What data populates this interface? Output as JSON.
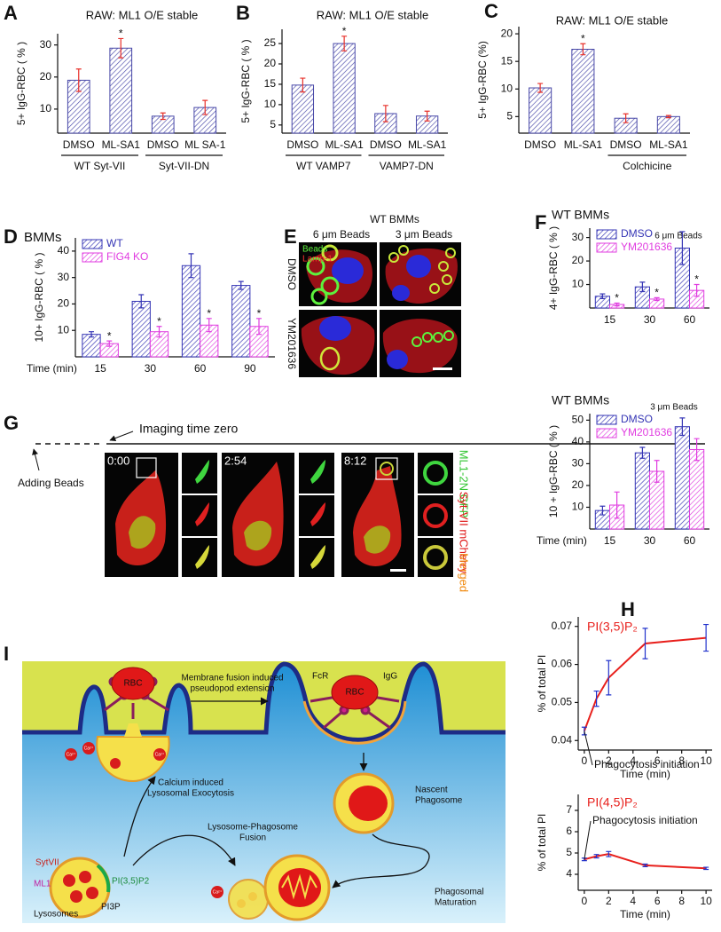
{
  "panel_labels": [
    "A",
    "B",
    "C",
    "D",
    "E",
    "F",
    "G",
    "H",
    "I"
  ],
  "chart_data": [
    {
      "type": "bar",
      "title": "RAW: ML1 O/E stable",
      "y_label": "5+ IgG-RBC ( % )",
      "categories": [
        "DMSO",
        "ML-SA1",
        "DMSO",
        "ML SA-1"
      ],
      "values": [
        19,
        29,
        7.8,
        10.5
      ],
      "errors": [
        3.5,
        3,
        1,
        2.2
      ],
      "significance": [
        null,
        "*",
        null,
        null
      ],
      "group_labels": [
        "WT Syt-VII",
        "Syt-VII-DN"
      ],
      "color": "#4848a8",
      "error_color": "#e8302a",
      "ylim": [
        2.5,
        33.5
      ],
      "yticks": [
        10,
        20,
        30
      ]
    },
    {
      "type": "bar",
      "title": "RAW: ML1 O/E stable",
      "y_label": "5+ IgG-RBC ( % )",
      "categories": [
        "DMSO",
        "ML-SA1",
        "DMSO",
        "ML-SA1"
      ],
      "values": [
        14.8,
        25,
        7.8,
        7.2
      ],
      "errors": [
        1.7,
        1.8,
        2,
        1.2
      ],
      "significance": [
        null,
        "*",
        null,
        null
      ],
      "group_labels": [
        "WT VAMP7",
        "VAMP7-DN"
      ],
      "color": "#4848a8",
      "error_color": "#e8302a",
      "ylim": [
        3,
        28.5
      ],
      "yticks": [
        5,
        10,
        15,
        20,
        25
      ]
    },
    {
      "type": "bar",
      "title": "RAW: ML1 O/E stable",
      "y_label": "5+ IgG-RBC (%)",
      "categories": [
        "DMSO",
        "ML-SA1",
        "DMSO",
        "ML-SA1"
      ],
      "values": [
        10.2,
        17.2,
        4.7,
        5
      ],
      "errors": [
        0.8,
        1,
        0.8,
        0.2
      ],
      "significance": [
        null,
        "*",
        null,
        null
      ],
      "group_labels": [
        null,
        "Colchicine"
      ],
      "color": "#4848a8",
      "error_color": "#e8302a",
      "ylim": [
        2,
        21.3
      ],
      "yticks": [
        5,
        10,
        15,
        20
      ]
    },
    {
      "type": "bar",
      "title": "BMMs",
      "y_label": "10+ IgG-RBC ( % )",
      "x_label": "Time (min)",
      "categories": [
        "15",
        "30",
        "60",
        "90"
      ],
      "series": [
        {
          "name": "WT",
          "color": "#3535b5",
          "values": [
            8.5,
            21,
            34.5,
            27
          ],
          "errors": [
            1,
            2.5,
            4.5,
            1.5
          ]
        },
        {
          "name": "FIG4 KO",
          "color": "#e03ce0",
          "values": [
            5,
            9.5,
            12,
            11.5
          ],
          "errors": [
            1,
            2,
            2.5,
            3
          ],
          "significance": [
            "*",
            "*",
            "*",
            "*"
          ]
        }
      ],
      "legend": "upper left",
      "ylim": [
        0,
        45
      ],
      "yticks": [
        10,
        20,
        30,
        40
      ]
    },
    {
      "type": "bar",
      "title": "WT BMMs",
      "subtitle": "6 μm Beads",
      "y_label": "4+ IgG-RBC ( % )",
      "categories": [
        "15",
        "30",
        "60"
      ],
      "series": [
        {
          "name": "DMSO",
          "color": "#3535b5",
          "values": [
            5,
            9,
            25.5
          ],
          "errors": [
            1,
            2,
            7
          ]
        },
        {
          "name": "YM201636",
          "color": "#e03ce0",
          "values": [
            1.5,
            3.8,
            7.5
          ],
          "errors": [
            0.6,
            0.6,
            2.5
          ],
          "significance": [
            "*",
            "*",
            "*"
          ]
        }
      ],
      "legend": "upper left",
      "ylim": [
        0,
        34
      ],
      "yticks": [
        10,
        20,
        30
      ]
    },
    {
      "type": "bar",
      "title": "WT BMMs",
      "subtitle": "3 μm Beads",
      "y_label": "10 + IgG-RBC ( % )",
      "x_label": "Time (min)",
      "categories": [
        "15",
        "30",
        "60"
      ],
      "series": [
        {
          "name": "DMSO",
          "color": "#3535b5",
          "values": [
            8.5,
            35,
            47
          ],
          "errors": [
            2,
            2.5,
            4
          ]
        },
        {
          "name": "YM201636",
          "color": "#e03ce0",
          "values": [
            11,
            26.5,
            36.5
          ],
          "errors": [
            6,
            5,
            5
          ]
        }
      ],
      "legend": "upper left",
      "ylim": [
        0,
        53
      ],
      "yticks": [
        10,
        20,
        30,
        40,
        50
      ]
    },
    {
      "type": "line",
      "title": "PI(3,5)P₂",
      "y_label": "% of total PI",
      "x_label": "Time (min)",
      "annotation": "Phagocytosis initiation",
      "x": [
        0,
        1,
        2,
        5,
        10
      ],
      "values": [
        0.0425,
        0.051,
        0.0565,
        0.0655,
        0.067
      ],
      "errors": [
        0.001,
        0.002,
        0.0045,
        0.004,
        0.0035
      ],
      "color": "#e8201c",
      "error_color": "#2233cc",
      "xlim": [
        -0.5,
        10.5
      ],
      "ylim": [
        0.0375,
        0.0725
      ],
      "xticks": [
        0,
        2,
        4,
        6,
        8,
        10
      ],
      "yticks": [
        0.04,
        0.05,
        0.06,
        0.07
      ]
    },
    {
      "type": "line",
      "title": "PI(4,5)P₂",
      "y_label": "% of total PI",
      "x_label": "Time (min)",
      "annotation": "Phagocytosis initiation",
      "x": [
        0,
        1,
        2,
        5,
        10
      ],
      "values": [
        4.7,
        4.85,
        4.95,
        4.42,
        4.28
      ],
      "errors": [
        0.06,
        0.08,
        0.12,
        0.06,
        0.05
      ],
      "color": "#e8201c",
      "error_color": "#2233cc",
      "xlim": [
        -0.5,
        10.5
      ],
      "ylim": [
        3.25,
        7.75
      ],
      "xticks": [
        0,
        2,
        4,
        6,
        8,
        10
      ],
      "yticks": [
        4,
        5,
        6,
        7
      ]
    }
  ],
  "panel_e": {
    "title": "WT BMMs",
    "columns": [
      "6 μm Beads",
      "3 μm Beads"
    ],
    "rows": [
      "DMSO",
      "YM201636"
    ],
    "channels": [
      "Beads",
      "Lamp-1"
    ]
  },
  "panel_g": {
    "arrows": [
      "Imaging time zero",
      "Adding Beads"
    ],
    "times": [
      "0:00",
      "2:54",
      "8:12"
    ],
    "channels": [
      "ML1-2N GFP",
      "Syt-VII mCherry",
      "Merged"
    ]
  },
  "panel_i": {
    "rbc": "RBC",
    "fcr": "FcR",
    "igg": "IgG",
    "calcium": "Ca²⁺",
    "pseudopod": [
      "Membrane fusion induced",
      "pseudopod extension"
    ],
    "exocytosis": [
      "Calcium induced",
      "Lysosomal Exocytosis"
    ],
    "fusion": [
      "Lysosome-Phagosome",
      "Fusion"
    ],
    "nascent": [
      "Nascent",
      "Phagosome"
    ],
    "maturation": [
      "Phagosomal",
      "Maturation"
    ],
    "sytvii": "SytVII",
    "ml1": "ML1",
    "pi35": "PI(3,5)P2",
    "pi3p": "PI3P",
    "lysosomes": "Lysosomes"
  }
}
